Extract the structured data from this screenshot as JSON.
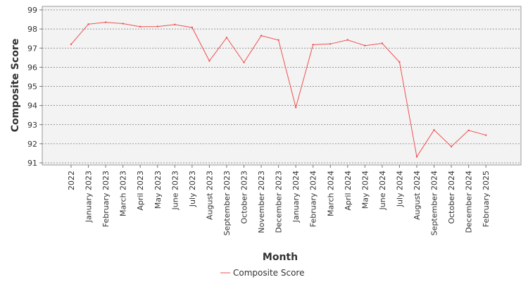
{
  "chart_data": {
    "type": "line",
    "title": "",
    "xlabel": "Month",
    "ylabel": "Composite Score",
    "ylim": [
      91,
      99
    ],
    "yticks": [
      91,
      92,
      93,
      94,
      95,
      96,
      97,
      98,
      99
    ],
    "grid": true,
    "legend": "bottom-center",
    "categories": [
      "2022",
      "January 2023",
      "February 2023",
      "March 2023",
      "April 2023",
      "May 2023",
      "June 2023",
      "July 2023",
      "August 2023",
      "September 2023",
      "October 2023",
      "November 2023",
      "December 2023",
      "January 2024",
      "February 2024",
      "March 2024",
      "April 2024",
      "May 2024",
      "June 2024",
      "July 2024",
      "August 2024",
      "September 2024",
      "October 2024",
      "December 2024",
      "February 2025"
    ],
    "series": [
      {
        "name": "Composite Score",
        "color": "#f05050",
        "values": [
          97.2,
          98.25,
          98.35,
          98.28,
          98.12,
          98.13,
          98.23,
          98.08,
          96.33,
          97.55,
          96.25,
          97.65,
          97.42,
          93.9,
          97.18,
          97.22,
          97.43,
          97.13,
          97.25,
          96.27,
          91.32,
          92.72,
          91.85,
          92.7,
          92.45
        ]
      }
    ]
  }
}
